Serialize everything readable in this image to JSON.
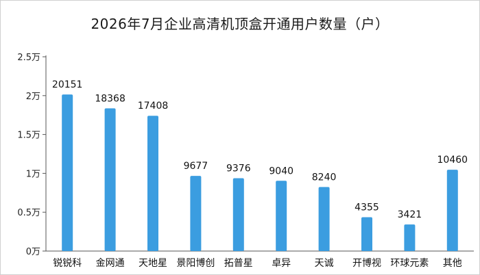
{
  "chart_data": {
    "type": "bar",
    "title": "2026年7月企业高清机顶盒开通用户数量（户）",
    "categories": [
      "锐锐科",
      "金网通",
      "天地星",
      "景阳博创",
      "拓普星",
      "卓异",
      "天诚",
      "开博视",
      "环球元素",
      "其他"
    ],
    "values": [
      20151,
      18368,
      17408,
      9677,
      9376,
      9040,
      8240,
      4355,
      3421,
      10460
    ],
    "ylim": [
      0,
      25000
    ],
    "yticks": [
      0,
      5000,
      10000,
      15000,
      20000,
      25000
    ],
    "ytick_labels": [
      "0万",
      "0.5万",
      "1万",
      "1.5万",
      "2万",
      "2.5万"
    ],
    "xlabel": "",
    "ylabel": "",
    "grid": false,
    "bar_color": "#3b9de0",
    "axis_color": "#555555"
  }
}
